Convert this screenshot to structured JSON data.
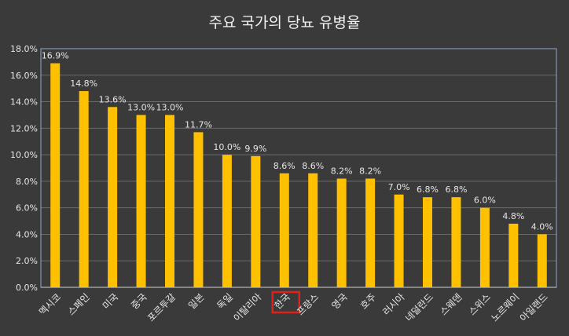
{
  "chart_data": {
    "type": "bar",
    "title": "주요 국가의 당뇨 유병율",
    "categories": [
      "멕시코",
      "스페인",
      "미국",
      "중국",
      "포르투갈",
      "일본",
      "독일",
      "이탈리아",
      "한국",
      "프랑스",
      "영국",
      "호주",
      "러시아",
      "네덜란드",
      "스웨덴",
      "스위스",
      "노르웨이",
      "아일랜드"
    ],
    "values": [
      16.9,
      14.8,
      13.6,
      13.0,
      13.0,
      11.7,
      10.0,
      9.9,
      8.6,
      8.6,
      8.2,
      8.2,
      7.0,
      6.8,
      6.8,
      6.0,
      4.8,
      4.0
    ],
    "data_labels": [
      "16.9%",
      "14.8%",
      "13.6%",
      "13.0%",
      "13.0%",
      "11.7%",
      "10.0%",
      "9.9%",
      "8.6%",
      "8.6%",
      "8.2%",
      "8.2%",
      "7.0%",
      "6.8%",
      "6.8%",
      "6.0%",
      "4.8%",
      "4.0%"
    ],
    "y_ticks": [
      "0.0%",
      "2.0%",
      "4.0%",
      "6.0%",
      "8.0%",
      "10.0%",
      "12.0%",
      "14.0%",
      "16.0%",
      "18.0%"
    ],
    "ylim": [
      0,
      18
    ],
    "grid": true,
    "highlight_category": "한국",
    "colors": {
      "background": "#3a3a3a",
      "bar": "#ffc000",
      "highlight_box": "#e0201b",
      "text": "#e6e6e6",
      "grid": "#6a6a6a",
      "plot_border": "#8eaac8"
    }
  }
}
